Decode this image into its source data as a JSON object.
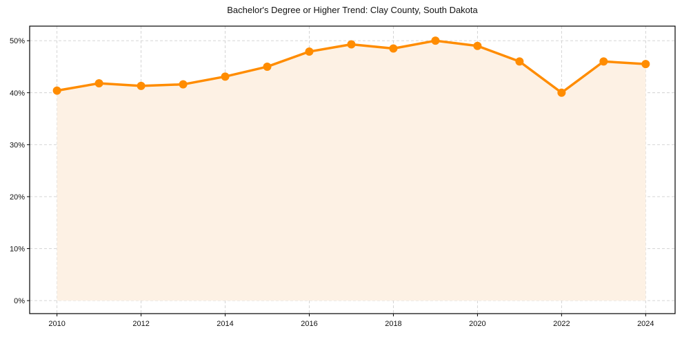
{
  "chart_data": {
    "type": "line",
    "title": "Bachelor's Degree or Higher Trend: Clay County, South Dakota",
    "xlabel": "",
    "ylabel": "",
    "x": [
      2010,
      2011,
      2012,
      2013,
      2014,
      2015,
      2016,
      2017,
      2018,
      2019,
      2020,
      2021,
      2022,
      2023,
      2024
    ],
    "series": [
      {
        "name": "Bachelor's Degree or Higher",
        "values": [
          40.4,
          41.8,
          41.3,
          41.6,
          43.1,
          45.0,
          47.9,
          49.3,
          48.5,
          50.0,
          49.0,
          46.0,
          40.0,
          46.0,
          45.5
        ],
        "color": "#FF8C00",
        "fill": "#FDF1E4",
        "markers": true
      }
    ],
    "xticks": [
      2010,
      2012,
      2014,
      2016,
      2018,
      2020,
      2022,
      2024
    ],
    "yticks": [
      0,
      10,
      20,
      30,
      40,
      50
    ],
    "ytick_labels": [
      "0%",
      "10%",
      "20%",
      "30%",
      "40%",
      "50%"
    ],
    "xlim": [
      2009.35,
      2024.7
    ],
    "ylim": [
      -2.5,
      52.8
    ],
    "grid": true,
    "legend": null
  }
}
